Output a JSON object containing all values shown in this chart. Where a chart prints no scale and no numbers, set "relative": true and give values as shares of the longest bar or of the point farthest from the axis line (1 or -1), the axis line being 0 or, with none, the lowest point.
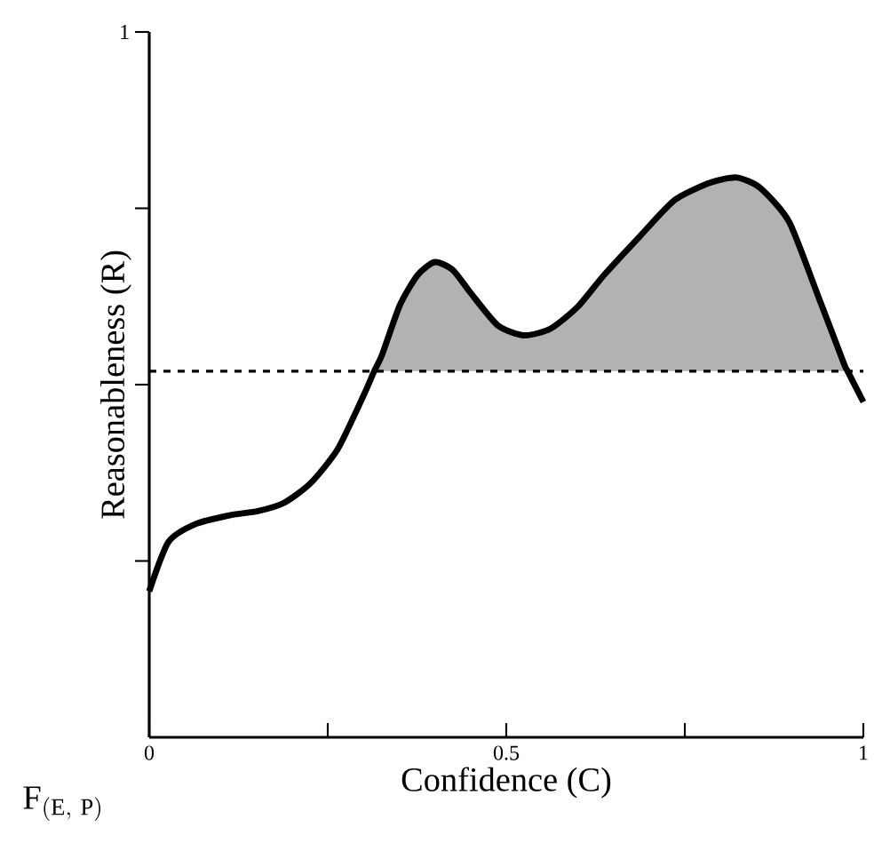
{
  "chart_data": {
    "type": "line",
    "xlabel": "Confidence (C)",
    "ylabel": "Reasonableness (R)",
    "annotations": [
      "1",
      "\\mathrm{F}_{(\\mathrm{E,\\ P})}"
    ],
    "x": [
      0,
      0.027,
      0.065,
      0.114,
      0.152,
      0.189,
      0.226,
      0.264,
      0.301,
      0.315,
      0.326,
      0.351,
      0.376,
      0.4,
      0.425,
      0.45,
      0.488,
      0.525,
      0.562,
      0.6,
      0.637,
      0.687,
      0.736,
      0.786,
      0.823,
      0.856,
      0.896,
      0.935,
      0.973,
      0.978,
      1
    ],
    "relative": true,
    "series": [
      {
        "color": "#000000",
        "values": [
          0.261,
          0.349,
          0.381,
          0.397,
          0.404,
          0.419,
          0.454,
          0.515,
          0.613,
          0.654,
          0.683,
          0.772,
          0.826,
          0.849,
          0.835,
          0.794,
          0.736,
          0.718,
          0.73,
          0.769,
          0.826,
          0.895,
          0.96,
          0.991,
          1,
          0.981,
          0.921,
          0.794,
          0.667,
          0.654,
          0.599
        ],
        "lower": [
          null,
          null,
          null,
          null,
          null,
          null,
          null,
          null,
          null,
          0.654,
          0.654,
          0.654,
          0.654,
          0.654,
          0.654,
          0.654,
          0.654,
          0.654,
          0.654,
          0.654,
          0.654,
          0.654,
          0.654,
          0.654,
          0.654,
          0.654,
          0.654,
          0.654,
          0.654,
          0.654,
          null
        ],
        "upper": [
          null,
          null,
          null,
          null,
          null,
          null,
          null,
          null,
          null,
          0.654,
          0.683,
          0.772,
          0.826,
          0.849,
          0.835,
          0.794,
          0.736,
          0.718,
          0.73,
          0.769,
          0.826,
          0.895,
          0.96,
          0.991,
          1,
          0.981,
          0.921,
          0.794,
          0.667,
          0.654,
          null
        ]
      }
    ],
    "xlim": [
      0,
      1
    ],
    "xticks": [
      0,
      {
        "value": 0.25,
        "label": null
      },
      0.5,
      {
        "value": 0.75,
        "label": null
      },
      1
    ],
    "ref_lines": [
      {
        "axis": "y",
        "value": 0.654,
        "color": "#000000",
        "line_style": "dashed"
      }
    ],
    "marker": "none",
    "line_style": "solid",
    "grid": false
  }
}
